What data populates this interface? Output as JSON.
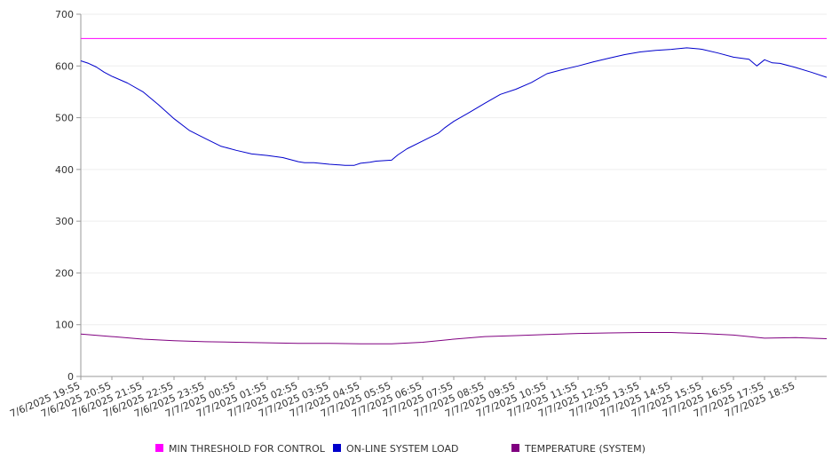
{
  "chart_data": {
    "type": "line",
    "title": "",
    "xlabel": "",
    "ylabel": "",
    "ylim": [
      0,
      700
    ],
    "y_ticks": [
      0,
      100,
      200,
      300,
      400,
      500,
      600,
      700
    ],
    "grid": "horizontal",
    "legend_position": "bottom",
    "x_tick_labels": [
      "7/6/2025 19:55",
      "7/6/2025 20:55",
      "7/6/2025 21:55",
      "7/6/2025 22:55",
      "7/6/2025 23:55",
      "7/7/2025 00:55",
      "7/7/2025 01:55",
      "7/7/2025 02:55",
      "7/7/2025 03:55",
      "7/7/2025 04:55",
      "7/7/2025 05:55",
      "7/7/2025 06:55",
      "7/7/2025 07:55",
      "7/7/2025 08:55",
      "7/7/2025 09:55",
      "7/7/2025 10:55",
      "7/7/2025 11:55",
      "7/7/2025 12:55",
      "7/7/2025 13:55",
      "7/7/2025 14:55",
      "7/7/2025 15:55",
      "7/7/2025 16:55",
      "7/7/2025 17:55",
      "7/7/2025 18:55"
    ],
    "x_range_hours": [
      0,
      24
    ],
    "series": [
      {
        "name": "MIN THRESHOLD FOR CONTROL",
        "color": "#ff00ff",
        "x": [
          0,
          24
        ],
        "values": [
          653,
          653
        ]
      },
      {
        "name": "ON-LINE SYSTEM LOAD",
        "color": "#0000cc",
        "x": [
          0,
          0.25,
          0.5,
          0.75,
          1,
          1.5,
          2,
          2.5,
          3,
          3.5,
          4,
          4.5,
          5,
          5.5,
          6,
          6.5,
          7,
          7.2,
          7.5,
          8,
          8.5,
          8.8,
          9,
          9.3,
          9.5,
          10,
          10.2,
          10.5,
          11,
          11.5,
          11.7,
          12,
          12.5,
          13,
          13.5,
          14,
          14.5,
          15,
          15.5,
          16,
          16.5,
          17,
          17.5,
          18,
          18.5,
          19,
          19.5,
          19.9,
          20,
          20.5,
          21,
          21.5,
          21.75,
          22,
          22.25,
          22.5,
          23,
          23.5,
          24
        ],
        "values": [
          610,
          605,
          598,
          588,
          580,
          567,
          550,
          525,
          498,
          475,
          460,
          445,
          437,
          430,
          427,
          423,
          415,
          413,
          413,
          410,
          408,
          408,
          412,
          414,
          416,
          418,
          428,
          440,
          455,
          470,
          480,
          493,
          510,
          528,
          545,
          555,
          568,
          585,
          593,
          600,
          608,
          615,
          622,
          627,
          630,
          632,
          635,
          633,
          632,
          625,
          617,
          613,
          600,
          612,
          606,
          605,
          597,
          588,
          578
        ]
      },
      {
        "name": "TEMPERATURE (SYSTEM)",
        "color": "#800080",
        "x": [
          0,
          1,
          2,
          3,
          4,
          5,
          6,
          7,
          8,
          9,
          10,
          11,
          12,
          13,
          14,
          15,
          16,
          17,
          18,
          19,
          20,
          21,
          22,
          23,
          24
        ],
        "values": [
          82,
          77,
          72,
          69,
          67,
          66,
          65,
          64,
          64,
          63,
          63,
          66,
          72,
          77,
          79,
          81,
          83,
          84,
          85,
          85,
          83,
          80,
          74,
          75,
          73
        ]
      }
    ]
  }
}
